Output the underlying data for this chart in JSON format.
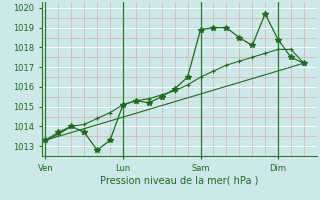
{
  "xlabel": "Pression niveau de la mer( hPa )",
  "bg_color": "#cce8e8",
  "line_color": "#1a6e1a",
  "ylim": [
    1012.5,
    1020.3
  ],
  "xlim": [
    -0.15,
    10.5
  ],
  "day_labels": [
    "Ven",
    "Lun",
    "Sam",
    "Dim"
  ],
  "day_positions": [
    0,
    3,
    6,
    9
  ],
  "series1_x": [
    0,
    0.5,
    1.0,
    1.5,
    2.0,
    2.5,
    3.0,
    3.5,
    4.0,
    4.5,
    5.0,
    5.5,
    6.0,
    6.5,
    7.0,
    7.5,
    8.0,
    8.5,
    9.0,
    9.5,
    10.0
  ],
  "series1_y": [
    1013.3,
    1013.7,
    1014.0,
    1013.7,
    1012.8,
    1013.3,
    1015.1,
    1015.3,
    1015.2,
    1015.5,
    1015.9,
    1016.5,
    1018.9,
    1019.0,
    1019.0,
    1018.5,
    1018.1,
    1019.7,
    1018.4,
    1017.5,
    1017.2
  ],
  "series2_x": [
    0,
    10.0
  ],
  "series2_y": [
    1013.3,
    1017.2
  ],
  "series3_x": [
    0,
    0.5,
    1.0,
    1.5,
    2.0,
    2.5,
    3.0,
    3.5,
    4.0,
    4.5,
    5.0,
    5.5,
    6.0,
    6.5,
    7.0,
    7.5,
    8.0,
    8.5,
    9.0,
    9.5,
    10.0
  ],
  "series3_y": [
    1013.3,
    1013.6,
    1014.0,
    1014.1,
    1014.4,
    1014.7,
    1015.1,
    1015.3,
    1015.4,
    1015.6,
    1015.8,
    1016.1,
    1016.5,
    1016.8,
    1017.1,
    1017.3,
    1017.5,
    1017.7,
    1017.9,
    1017.9,
    1017.2
  ],
  "vline_positions": [
    0,
    3,
    6,
    9
  ],
  "yticks": [
    1013,
    1014,
    1015,
    1016,
    1017,
    1018,
    1019,
    1020
  ],
  "ytick_fontsize": 6,
  "xtick_fontsize": 6,
  "xlabel_fontsize": 7
}
